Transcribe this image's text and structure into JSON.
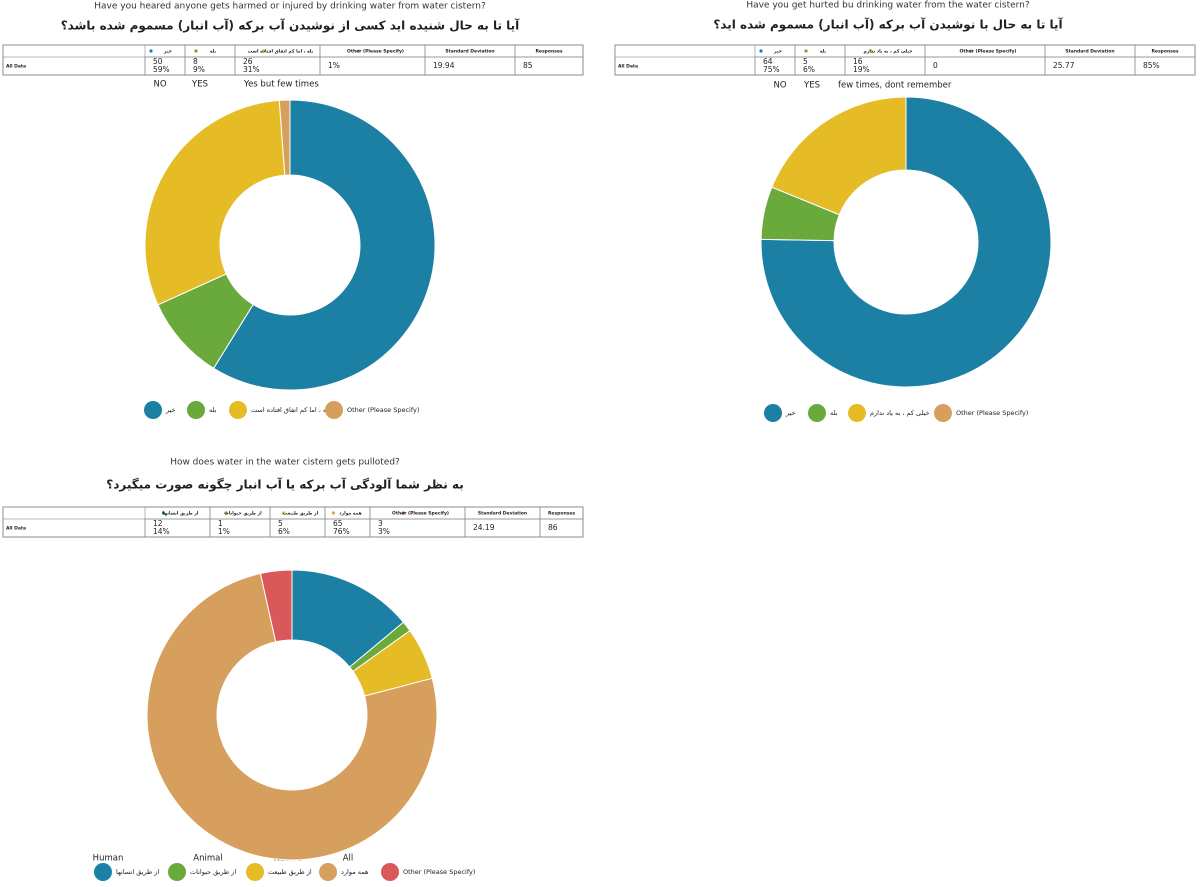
{
  "chart_data": [
    {
      "type": "donut",
      "title": "Have you heared anyone gets harmed or injured by drinking water from water  cistern?",
      "subtitle": "آیا تا به حال شنیده اید کسی از نوشیدن آب برکه (آب انبار) مسموم شده باشد؟",
      "table": {
        "header": [
          "خیر",
          "بله",
          "بله ، اما کم اتفاق افتاده است",
          "Other (Please Specify)",
          "Standard Deviation",
          "Responses"
        ],
        "rows": [
          [
            [
              "All Data"
            ],
            [
              "50",
              "59%"
            ],
            [
              "8",
              "9%"
            ],
            [
              "26",
              "31%"
            ],
            [
              "1%"
            ],
            [
              "19.94"
            ],
            [
              "85"
            ]
          ]
        ]
      },
      "annotations": [
        "NO",
        "YES",
        "Yes but few times"
      ],
      "categories": [
        "خیر",
        "بله",
        "بله ، اما کم اتفاق افتاده است",
        "Other (Please Specify)"
      ],
      "colors": [
        "#1b80a3",
        "#6aa93b",
        "#e5bc25",
        "#d69f5e"
      ],
      "values": [
        50,
        8,
        26,
        1
      ]
    },
    {
      "type": "donut",
      "title": "Have you get hurted bu drinking water from the water cistern?",
      "subtitle": "آیا تا به حال با نوشیدن آب برکه (آب انبار) مسموم شده اید؟",
      "table": {
        "header": [
          "خیر",
          "بله",
          "خیلی کم ، به یاد ندارم",
          "Other (Please Specify)",
          "Standard Deviation",
          "Responses"
        ],
        "rows": [
          [
            [
              "All Data"
            ],
            [
              "64",
              "75%"
            ],
            [
              "5",
              "6%"
            ],
            [
              "16",
              "19%"
            ],
            [
              "0"
            ],
            [
              "25.77"
            ],
            [
              "85%"
            ]
          ]
        ]
      },
      "annotations": [
        "NO",
        "YES",
        "few times, dont remember"
      ],
      "categories": [
        "خیر",
        "بله",
        "خیلی کم ، به یاد ندارم",
        "Other (Please Specify)"
      ],
      "colors": [
        "#1b80a3",
        "#6aa93b",
        "#e5bc25",
        "#d69f5e"
      ],
      "values": [
        64,
        5,
        16,
        0
      ]
    },
    {
      "type": "donut",
      "title": "How does water in the water cistern gets pulloted?",
      "subtitle": "به نظر شما آلودگی آب برکه یا آب انبار چگونه صورت میگیرد؟",
      "table": {
        "header": [
          "از طریق انسانها",
          "از طریق حیوانات",
          "از طریق طبیعت",
          "همه موارد",
          "Other (Please Specify)",
          "Standard Deviation",
          "Responses"
        ],
        "rows": [
          [
            [
              "All Data"
            ],
            [
              "12",
              "14%"
            ],
            [
              "1",
              "1%"
            ],
            [
              "5",
              "6%"
            ],
            [
              "65",
              "76%"
            ],
            [
              "3",
              "3%"
            ],
            [
              "24.19"
            ],
            [
              "86"
            ]
          ]
        ]
      },
      "annotations": [
        "Human",
        "Animal",
        "Nature",
        "All"
      ],
      "categories": [
        "از طریق انسانها",
        "از طریق حیوانات",
        "از طریق طبیعت",
        "همه موارد",
        "Other (Please Specify)"
      ],
      "colors": [
        "#1b80a3",
        "#6aa93b",
        "#e5bc25",
        "#d69f5e",
        "#d9585a"
      ],
      "values": [
        12,
        1,
        5,
        65,
        3
      ]
    }
  ]
}
